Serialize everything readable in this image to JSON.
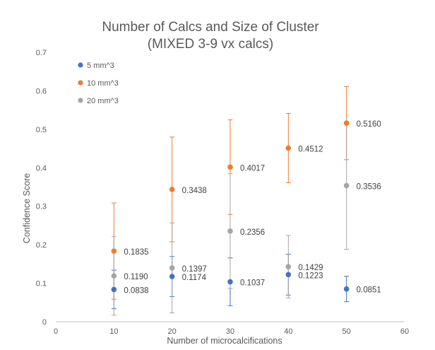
{
  "chart_data": {
    "type": "scatter",
    "title": [
      "Number of Calcs and Size of Cluster",
      "(MIXED 3-9 vx calcs)"
    ],
    "xlabel": "Number of microcalcifications",
    "ylabel": "Confidence Score",
    "xlim": [
      0,
      60
    ],
    "ylim": [
      0,
      0.7
    ],
    "x_ticks": [
      "0",
      "10",
      "20",
      "30",
      "40",
      "50",
      "60"
    ],
    "y_ticks": [
      "0",
      "0.1",
      "0.2",
      "0.3",
      "0.4",
      "0.5",
      "0.6",
      "0.7"
    ],
    "grid": false,
    "legend_position": "top-left",
    "series": [
      {
        "name": "5 mm^3",
        "color": "#4472c4",
        "points": [
          {
            "x": 10,
            "y": 0.0838,
            "label": "0.0838",
            "err_low": 0.0338,
            "err_high": 0.1338
          },
          {
            "x": 20,
            "y": 0.1174,
            "label": "0.1174",
            "err_low": 0.0654,
            "err_high": 0.1694
          },
          {
            "x": 30,
            "y": 0.1037,
            "label": "0.1037",
            "err_low": 0.0417,
            "err_high": 0.1657
          },
          {
            "x": 40,
            "y": 0.1223,
            "label": "0.1223",
            "err_low": 0.0693,
            "err_high": 0.1753
          },
          {
            "x": 50,
            "y": 0.0851,
            "label": "0.0851",
            "err_low": 0.0521,
            "err_high": 0.1181
          }
        ]
      },
      {
        "name": "10 mm^3",
        "color": "#ed7d31",
        "points": [
          {
            "x": 10,
            "y": 0.1835,
            "label": "0.1835",
            "err_low": 0.0585,
            "err_high": 0.3085
          },
          {
            "x": 20,
            "y": 0.3438,
            "label": "0.3438",
            "err_low": 0.2078,
            "err_high": 0.4798
          },
          {
            "x": 30,
            "y": 0.4017,
            "label": "0.4017",
            "err_low": 0.2787,
            "err_high": 0.5247
          },
          {
            "x": 40,
            "y": 0.4512,
            "label": "0.4512",
            "err_low": 0.3612,
            "err_high": 0.5412
          },
          {
            "x": 50,
            "y": 0.516,
            "label": "0.5160",
            "err_low": 0.421,
            "err_high": 0.611
          }
        ]
      },
      {
        "name": "20 mm^3",
        "color": "#a5a5a5",
        "points": [
          {
            "x": 10,
            "y": 0.119,
            "label": "0.1190",
            "err_low": 0.017,
            "err_high": 0.221
          },
          {
            "x": 20,
            "y": 0.1397,
            "label": "0.1397",
            "err_low": 0.0227,
            "err_high": 0.2567
          },
          {
            "x": 30,
            "y": 0.2356,
            "label": "0.2356",
            "err_low": 0.0866,
            "err_high": 0.3846
          },
          {
            "x": 40,
            "y": 0.1429,
            "label": "0.1429",
            "err_low": 0.0619,
            "err_high": 0.2239
          },
          {
            "x": 50,
            "y": 0.3536,
            "label": "0.3536",
            "err_low": 0.1876,
            "err_high": 0.5196
          }
        ]
      }
    ]
  }
}
